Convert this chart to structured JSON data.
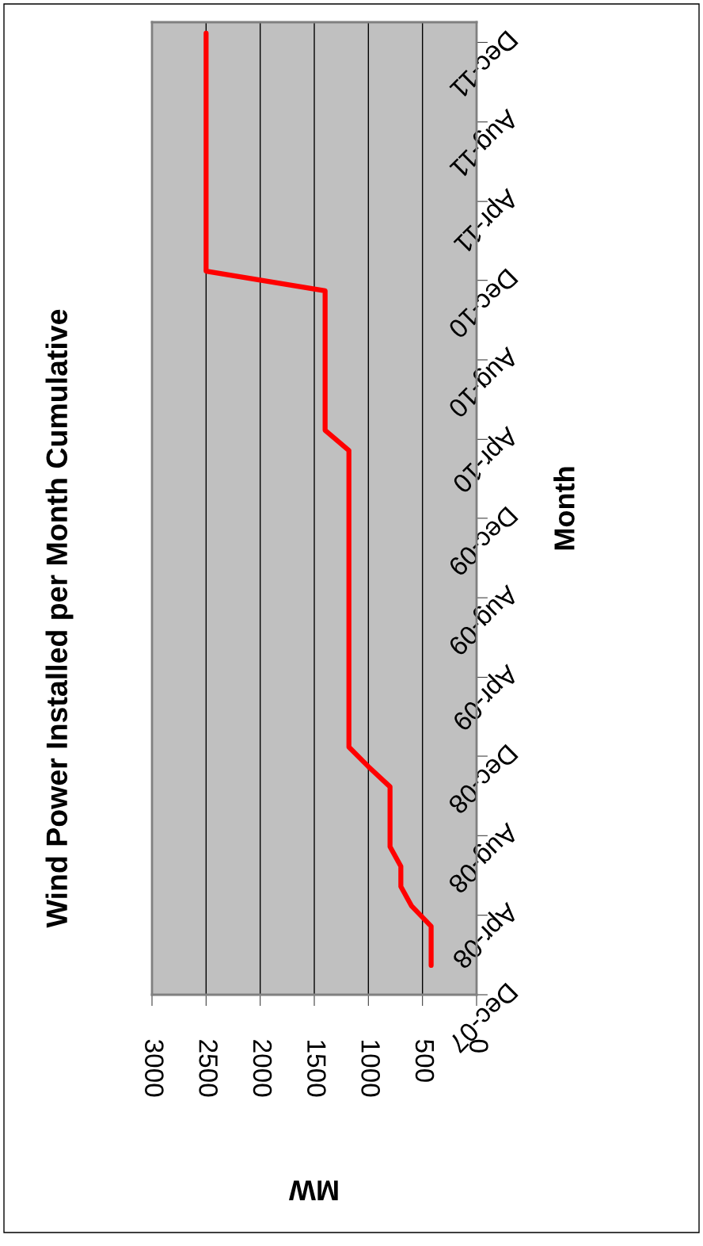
{
  "chart_data": {
    "type": "line",
    "orientation": "horizontal",
    "title": "Wind Power Installed per Month Cumulative",
    "xlabel": "MW",
    "ylabel": "Month",
    "x": [
      "2008-01-15",
      "2008-03-15",
      "2008-04-15",
      "2008-05-15",
      "2008-06-15",
      "2008-07-15",
      "2008-10-15",
      "2008-11-15",
      "2008-12-15",
      "2010-03-15",
      "2010-04-15",
      "2010-11-15",
      "2010-12-15",
      "2011-12-15"
    ],
    "series": [
      {
        "color": "#ff0000",
        "values": [
          420,
          420,
          600,
          700,
          700,
          800,
          800,
          1000,
          1180,
          1180,
          1400,
          1400,
          2500,
          2500
        ]
      }
    ],
    "ylim": [
      "2007-12-01",
      "2012-01-01"
    ],
    "yticks": [
      {
        "value": "2007-12-01",
        "label": "Dec-07"
      },
      {
        "value": "2008-04-01",
        "label": "Apr-08"
      },
      {
        "value": "2008-08-01",
        "label": "Aug-08"
      },
      {
        "value": "2008-12-01",
        "label": "Dec-08"
      },
      {
        "value": "2009-04-01",
        "label": "Apr-09"
      },
      {
        "value": "2009-08-01",
        "label": "Aug-09"
      },
      {
        "value": "2009-12-01",
        "label": "Dec-09"
      },
      {
        "value": "2010-04-01",
        "label": "Apr-10"
      },
      {
        "value": "2010-08-01",
        "label": "Aug-10"
      },
      {
        "value": "2010-12-01",
        "label": "Dec-10"
      },
      {
        "value": "2011-04-01",
        "label": "Apr-11"
      },
      {
        "value": "2011-08-01",
        "label": "Aug-11"
      },
      {
        "value": "2011-12-01",
        "label": "Dec-11"
      }
    ],
    "xlim": [
      3000,
      0
    ],
    "xticks": [
      3000,
      2500,
      2000,
      1500,
      1000,
      500,
      0
    ],
    "grid": "x",
    "marker": "none",
    "line_style": "solid"
  }
}
